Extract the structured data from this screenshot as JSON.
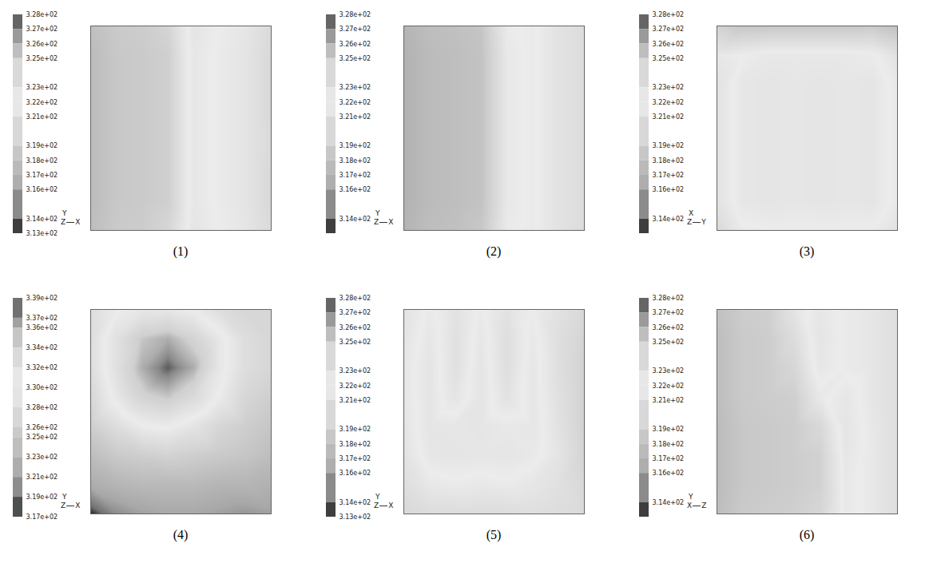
{
  "chart_data": [
    {
      "type": "heatmap",
      "title": "(1)",
      "axis_triad": {
        "up": "Y",
        "origin": "Z",
        "right": "X"
      },
      "colorbar": {
        "range": [
          313,
          328
        ],
        "ticks": [
          {
            "value": 328,
            "label": "3.28e+02"
          },
          {
            "value": 327,
            "label": "3.27e+02"
          },
          {
            "value": 326,
            "label": "3.26e+02"
          },
          {
            "value": 325,
            "label": "3.25e+02"
          },
          {
            "value": 323,
            "label": "3.23e+02"
          },
          {
            "value": 322,
            "label": "3.22e+02"
          },
          {
            "value": 321,
            "label": "3.21e+02"
          },
          {
            "value": 319,
            "label": "3.19e+02"
          },
          {
            "value": 318,
            "label": "3.18e+02"
          },
          {
            "value": 317,
            "label": "3.17e+02"
          },
          {
            "value": 316,
            "label": "3.16e+02"
          },
          {
            "value": 314,
            "label": "3.14e+02"
          },
          {
            "value": 313,
            "label": "3.13e+02"
          }
        ]
      },
      "cells": [
        [
          318.0,
          318.8,
          319.0,
          319.6,
          322.8,
          322.0,
          321.4,
          320.2
        ],
        [
          317.6,
          318.6,
          318.8,
          319.2,
          322.6,
          321.8,
          321.2,
          320.0
        ],
        [
          317.6,
          318.6,
          318.8,
          319.2,
          322.6,
          321.8,
          321.2,
          320.0
        ],
        [
          317.6,
          318.6,
          318.8,
          319.2,
          322.6,
          321.8,
          321.2,
          320.0
        ],
        [
          317.6,
          318.6,
          318.8,
          319.2,
          322.6,
          321.8,
          321.2,
          320.2
        ],
        [
          317.6,
          318.6,
          318.8,
          319.2,
          322.6,
          321.8,
          321.2,
          320.0
        ],
        [
          317.6,
          318.6,
          318.8,
          319.2,
          322.6,
          321.8,
          321.2,
          320.0
        ],
        [
          317.8,
          318.8,
          319.0,
          319.8,
          322.8,
          322.0,
          321.4,
          320.2
        ]
      ]
    },
    {
      "type": "heatmap",
      "title": "(2)",
      "axis_triad": {
        "up": "Y",
        "origin": "Z",
        "right": "X"
      },
      "colorbar": {
        "range": [
          313,
          328
        ],
        "ticks": [
          {
            "value": 328,
            "label": "3.28e+02"
          },
          {
            "value": 327,
            "label": "3.27e+02"
          },
          {
            "value": 326,
            "label": "3.26e+02"
          },
          {
            "value": 325,
            "label": "3.25e+02"
          },
          {
            "value": 323,
            "label": "3.23e+02"
          },
          {
            "value": 322,
            "label": "3.22e+02"
          },
          {
            "value": 321,
            "label": "3.21e+02"
          },
          {
            "value": 319,
            "label": "3.19e+02"
          },
          {
            "value": 318,
            "label": "3.18e+02"
          },
          {
            "value": 317,
            "label": "3.17e+02"
          },
          {
            "value": 316,
            "label": "3.16e+02"
          },
          {
            "value": 314,
            "label": "3.14e+02"
          }
        ]
      },
      "cells": [
        [
          317.0,
          317.8,
          318.0,
          318.4,
          321.8,
          322.2,
          321.0,
          320.4
        ],
        [
          316.8,
          317.6,
          317.8,
          318.2,
          321.6,
          322.2,
          321.0,
          320.4
        ],
        [
          316.8,
          317.6,
          317.8,
          318.2,
          321.6,
          322.2,
          321.0,
          320.4
        ],
        [
          316.8,
          317.6,
          317.8,
          318.2,
          321.6,
          322.2,
          321.0,
          320.4
        ],
        [
          316.8,
          317.6,
          317.8,
          318.2,
          321.6,
          322.2,
          321.0,
          320.4
        ],
        [
          316.8,
          317.6,
          317.8,
          318.2,
          321.6,
          322.2,
          321.0,
          320.4
        ],
        [
          316.8,
          317.6,
          317.8,
          318.2,
          321.6,
          322.2,
          321.0,
          320.4
        ],
        [
          317.0,
          317.8,
          318.0,
          318.6,
          321.8,
          322.2,
          321.0,
          320.4
        ]
      ]
    },
    {
      "type": "heatmap",
      "title": "(3)",
      "axis_triad": {
        "up": "X",
        "origin": "Z",
        "right": "Y"
      },
      "colorbar": {
        "range": [
          313,
          328
        ],
        "ticks": [
          {
            "value": 328,
            "label": "3.28e+02"
          },
          {
            "value": 327,
            "label": "3.27e+02"
          },
          {
            "value": 326,
            "label": "3.26e+02"
          },
          {
            "value": 325,
            "label": "3.25e+02"
          },
          {
            "value": 323,
            "label": "3.23e+02"
          },
          {
            "value": 322,
            "label": "3.22e+02"
          },
          {
            "value": 321,
            "label": "3.21e+02"
          },
          {
            "value": 319,
            "label": "3.19e+02"
          },
          {
            "value": 318,
            "label": "3.18e+02"
          },
          {
            "value": 317,
            "label": "3.17e+02"
          },
          {
            "value": 316,
            "label": "3.16e+02"
          },
          {
            "value": 314,
            "label": "3.14e+02"
          }
        ]
      },
      "cells": [
        [
          319.5,
          318.5,
          318.6,
          318.6,
          318.6,
          318.6,
          318.8,
          318.0
        ],
        [
          321.5,
          322.0,
          322.4,
          322.4,
          322.4,
          322.4,
          322.2,
          321.0
        ],
        [
          321.0,
          322.6,
          322.8,
          322.6,
          322.8,
          322.6,
          322.8,
          321.6
        ],
        [
          321.0,
          322.6,
          322.8,
          322.6,
          322.8,
          322.6,
          322.8,
          321.6
        ],
        [
          321.0,
          322.6,
          322.8,
          322.6,
          322.8,
          322.6,
          322.8,
          321.6
        ],
        [
          321.0,
          322.6,
          322.8,
          322.6,
          322.8,
          322.6,
          322.8,
          321.6
        ],
        [
          321.0,
          322.6,
          322.8,
          322.6,
          322.8,
          322.6,
          322.8,
          321.6
        ],
        [
          320.2,
          321.8,
          322.0,
          322.0,
          322.0,
          322.0,
          322.0,
          321.0
        ]
      ]
    },
    {
      "type": "heatmap",
      "title": "(4)",
      "axis_triad": {
        "up": "Y",
        "origin": "Z",
        "right": "X"
      },
      "colorbar": {
        "range": [
          317,
          339
        ],
        "ticks": [
          {
            "value": 339,
            "label": "3.39e+02"
          },
          {
            "value": 337,
            "label": "3.37e+02"
          },
          {
            "value": 336,
            "label": "3.36e+02"
          },
          {
            "value": 334,
            "label": "3.34e+02"
          },
          {
            "value": 332,
            "label": "3.32e+02"
          },
          {
            "value": 330,
            "label": "3.30e+02"
          },
          {
            "value": 328,
            "label": "3.28e+02"
          },
          {
            "value": 326,
            "label": "3.26e+02"
          },
          {
            "value": 325,
            "label": "3.25e+02"
          },
          {
            "value": 323,
            "label": "3.23e+02"
          },
          {
            "value": 321,
            "label": "3.21e+02"
          },
          {
            "value": 319,
            "label": "3.19e+02"
          },
          {
            "value": 317,
            "label": "3.17e+02"
          }
        ]
      },
      "cells": [
        [
          328,
          330,
          331,
          331,
          330,
          328,
          327,
          327
        ],
        [
          328,
          332,
          335,
          336,
          334,
          331,
          328,
          327
        ],
        [
          328,
          332,
          336,
          338.5,
          336,
          331,
          328,
          327
        ],
        [
          327,
          331,
          334,
          335,
          333,
          330,
          327,
          326
        ],
        [
          326,
          328,
          330,
          330.5,
          329,
          327,
          326,
          325
        ],
        [
          324,
          325.5,
          326,
          326.5,
          326,
          325.5,
          325,
          324
        ],
        [
          322,
          323,
          323.5,
          323.5,
          323.5,
          323,
          323,
          322.5
        ],
        [
          317.2,
          320,
          321,
          321.5,
          321.5,
          321,
          320.5,
          321
        ]
      ]
    },
    {
      "type": "heatmap",
      "title": "(5)",
      "axis_triad": {
        "up": "Y",
        "origin": "Z",
        "right": "X"
      },
      "colorbar": {
        "range": [
          313,
          328
        ],
        "ticks": [
          {
            "value": 328,
            "label": "3.28e+02"
          },
          {
            "value": 327,
            "label": "3.27e+02"
          },
          {
            "value": 326,
            "label": "3.26e+02"
          },
          {
            "value": 325,
            "label": "3.25e+02"
          },
          {
            "value": 323,
            "label": "3.23e+02"
          },
          {
            "value": 322,
            "label": "3.22e+02"
          },
          {
            "value": 321,
            "label": "3.21e+02"
          },
          {
            "value": 319,
            "label": "3.19e+02"
          },
          {
            "value": 318,
            "label": "3.18e+02"
          },
          {
            "value": 317,
            "label": "3.17e+02"
          },
          {
            "value": 316,
            "label": "3.16e+02"
          },
          {
            "value": 314,
            "label": "3.14e+02"
          },
          {
            "value": 313,
            "label": "3.13e+02"
          }
        ]
      },
      "cells": [
        [
          321.0,
          322.2,
          321.0,
          322.2,
          321.0,
          322.0,
          321.0,
          320.0
        ],
        [
          321.2,
          322.6,
          320.8,
          322.6,
          320.6,
          322.4,
          320.6,
          319.6
        ],
        [
          321.4,
          322.8,
          320.8,
          322.8,
          320.6,
          322.6,
          320.6,
          319.4
        ],
        [
          321.4,
          322.8,
          321.2,
          322.8,
          321.0,
          322.6,
          320.8,
          319.4
        ],
        [
          321.2,
          322.8,
          322.6,
          322.8,
          322.4,
          322.6,
          321.0,
          319.4
        ],
        [
          321.0,
          322.6,
          322.8,
          322.6,
          322.8,
          322.4,
          321.2,
          319.6
        ],
        [
          320.6,
          321.6,
          321.8,
          321.6,
          321.8,
          321.4,
          320.8,
          320.0
        ],
        [
          320.0,
          320.4,
          320.4,
          320.4,
          320.4,
          320.6,
          320.4,
          320.2
        ]
      ]
    },
    {
      "type": "heatmap",
      "title": "(6)",
      "axis_triad": {
        "up": "Y",
        "origin": "X",
        "right": "Z"
      },
      "colorbar": {
        "range": [
          313,
          328
        ],
        "ticks": [
          {
            "value": 328,
            "label": "3.28e+02"
          },
          {
            "value": 327,
            "label": "3.27e+02"
          },
          {
            "value": 326,
            "label": "3.26e+02"
          },
          {
            "value": 325,
            "label": "3.25e+02"
          },
          {
            "value": 323,
            "label": "3.23e+02"
          },
          {
            "value": 322,
            "label": "3.22e+02"
          },
          {
            "value": 321,
            "label": "3.21e+02"
          },
          {
            "value": 319,
            "label": "3.19e+02"
          },
          {
            "value": 318,
            "label": "3.18e+02"
          },
          {
            "value": 317,
            "label": "3.17e+02"
          },
          {
            "value": 316,
            "label": "3.16e+02"
          },
          {
            "value": 314,
            "label": "3.14e+02"
          }
        ]
      },
      "cells": [
        [
          318.0,
          319.0,
          319.2,
          321.2,
          322.6,
          321.8,
          321.4,
          320.6
        ],
        [
          317.8,
          318.8,
          319.0,
          320.4,
          322.8,
          321.8,
          321.4,
          320.6
        ],
        [
          317.8,
          318.8,
          319.0,
          319.8,
          322.6,
          321.8,
          321.4,
          320.6
        ],
        [
          317.8,
          318.8,
          319.0,
          319.2,
          321.6,
          322.6,
          321.4,
          320.6
        ],
        [
          317.6,
          318.6,
          318.8,
          319.0,
          320.0,
          322.8,
          321.6,
          320.6
        ],
        [
          317.6,
          318.6,
          318.8,
          319.0,
          319.4,
          322.6,
          321.6,
          320.6
        ],
        [
          317.6,
          318.6,
          318.8,
          319.0,
          319.4,
          322.4,
          321.6,
          320.6
        ],
        [
          317.8,
          318.8,
          319.0,
          319.2,
          319.8,
          322.4,
          321.6,
          320.6
        ]
      ]
    }
  ]
}
